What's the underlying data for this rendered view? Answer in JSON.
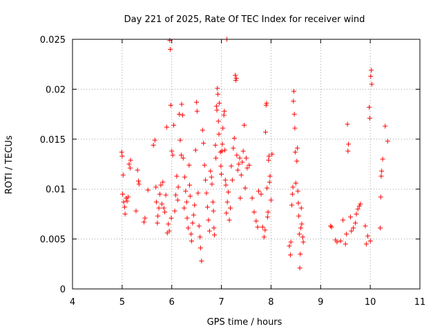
{
  "chart_data": {
    "type": "scatter",
    "title": "Day 221 of 2025, Rate Of TEC Index for receiver wind",
    "xlabel": "GPS time / hours",
    "ylabel": "ROTI / TECUs",
    "xlim": [
      4,
      11
    ],
    "ylim": [
      0,
      0.025
    ],
    "xticks": [
      4,
      5,
      6,
      7,
      8,
      9,
      10,
      11
    ],
    "xtick_labels": [
      "4",
      "5",
      "6",
      "7",
      "8",
      "9",
      "10",
      "11"
    ],
    "yticks": [
      0,
      0.005,
      0.01,
      0.015,
      0.02,
      0.025
    ],
    "ytick_labels": [
      "0",
      "0.005",
      "0.01",
      "0.015",
      "0.02",
      "0.025"
    ],
    "grid": true,
    "marker": "+",
    "color": "#ff0000",
    "series": [
      {
        "points": [
          [
            4.99,
            0.0137
          ],
          [
            5.0,
            0.0133
          ],
          [
            5.02,
            0.0114
          ],
          [
            5.01,
            0.0095
          ],
          [
            5.03,
            0.0087
          ],
          [
            5.05,
            0.0082
          ],
          [
            5.06,
            0.0075
          ],
          [
            5.08,
            0.0091
          ],
          [
            5.1,
            0.0088
          ],
          [
            5.12,
            0.0092
          ],
          [
            5.14,
            0.0125
          ],
          [
            5.16,
            0.0121
          ],
          [
            5.17,
            0.0129
          ],
          [
            5.28,
            0.0078
          ],
          [
            5.31,
            0.0119
          ],
          [
            5.33,
            0.0108
          ],
          [
            5.34,
            0.0105
          ],
          [
            5.44,
            0.0067
          ],
          [
            5.46,
            0.0071
          ],
          [
            5.52,
            0.0099
          ],
          [
            5.63,
            0.0144
          ],
          [
            5.66,
            0.0149
          ],
          [
            5.68,
            0.0102
          ],
          [
            5.69,
            0.0087
          ],
          [
            5.71,
            0.0066
          ],
          [
            5.72,
            0.0073
          ],
          [
            5.74,
            0.0081
          ],
          [
            5.76,
            0.0095
          ],
          [
            5.78,
            0.0104
          ],
          [
            5.8,
            0.0085
          ],
          [
            5.82,
            0.0107
          ],
          [
            5.84,
            0.0081
          ],
          [
            5.86,
            0.0077
          ],
          [
            5.88,
            0.0094
          ],
          [
            5.9,
            0.0162
          ],
          [
            5.91,
            0.0056
          ],
          [
            5.93,
            0.0065
          ],
          [
            5.95,
            0.0058
          ],
          [
            5.96,
            0.0249
          ],
          [
            5.97,
            0.024
          ],
          [
            5.98,
            0.0184
          ],
          [
            5.99,
            0.0071
          ],
          [
            6.0,
            0.0138
          ],
          [
            6.02,
            0.0134
          ],
          [
            6.04,
            0.0164
          ],
          [
            6.06,
            0.0078
          ],
          [
            6.08,
            0.0094
          ],
          [
            6.1,
            0.0113
          ],
          [
            6.12,
            0.0089
          ],
          [
            6.13,
            0.0102
          ],
          [
            6.15,
            0.0175
          ],
          [
            6.17,
            0.0149
          ],
          [
            6.19,
            0.0134
          ],
          [
            6.2,
            0.0185
          ],
          [
            6.22,
            0.0174
          ],
          [
            6.23,
            0.0131
          ],
          [
            6.25,
            0.0081
          ],
          [
            6.26,
            0.0112
          ],
          [
            6.28,
            0.0098
          ],
          [
            6.3,
            0.0087
          ],
          [
            6.31,
            0.0071
          ],
          [
            6.33,
            0.0061
          ],
          [
            6.35,
            0.0124
          ],
          [
            6.36,
            0.0104
          ],
          [
            6.37,
            0.0093
          ],
          [
            6.39,
            0.0055
          ],
          [
            6.4,
            0.0048
          ],
          [
            6.42,
            0.0066
          ],
          [
            6.44,
            0.0074
          ],
          [
            6.46,
            0.0084
          ],
          [
            6.48,
            0.0139
          ],
          [
            6.5,
            0.0187
          ],
          [
            6.51,
            0.0178
          ],
          [
            6.53,
            0.0096
          ],
          [
            6.55,
            0.0063
          ],
          [
            6.57,
            0.0052
          ],
          [
            6.58,
            0.0041
          ],
          [
            6.6,
            0.0028
          ],
          [
            6.62,
            0.0159
          ],
          [
            6.64,
            0.0146
          ],
          [
            6.66,
            0.0124
          ],
          [
            6.68,
            0.0109
          ],
          [
            6.7,
            0.0096
          ],
          [
            6.72,
            0.0082
          ],
          [
            6.74,
            0.0069
          ],
          [
            6.76,
            0.0058
          ],
          [
            6.78,
            0.0118
          ],
          [
            6.8,
            0.0112
          ],
          [
            6.81,
            0.0105
          ],
          [
            6.83,
            0.0087
          ],
          [
            6.84,
            0.0078
          ],
          [
            6.85,
            0.0061
          ],
          [
            6.86,
            0.0054
          ],
          [
            6.88,
            0.0144
          ],
          [
            6.89,
            0.0131
          ],
          [
            6.9,
            0.0183
          ],
          [
            6.91,
            0.0179
          ],
          [
            6.92,
            0.0201
          ],
          [
            6.93,
            0.0195
          ],
          [
            6.94,
            0.0168
          ],
          [
            6.95,
            0.0155
          ],
          [
            6.96,
            0.0186
          ],
          [
            6.98,
            0.0137
          ],
          [
            6.99,
            0.0123
          ],
          [
            7.0,
            0.0115
          ],
          [
            7.01,
            0.0138
          ],
          [
            7.02,
            0.0145
          ],
          [
            7.03,
            0.0161
          ],
          [
            7.05,
            0.0174
          ],
          [
            7.06,
            0.0178
          ],
          [
            7.07,
            0.0139
          ],
          [
            7.08,
            0.0109
          ],
          [
            7.09,
            0.0104
          ],
          [
            7.1,
            0.0076
          ],
          [
            7.11,
            0.025
          ],
          [
            7.12,
            0.0087
          ],
          [
            7.14,
            0.0097
          ],
          [
            7.16,
            0.0069
          ],
          [
            7.18,
            0.0081
          ],
          [
            7.2,
            0.0123
          ],
          [
            7.22,
            0.0109
          ],
          [
            7.24,
            0.0141
          ],
          [
            7.26,
            0.0151
          ],
          [
            7.28,
            0.0214
          ],
          [
            7.29,
            0.0209
          ],
          [
            7.3,
            0.0211
          ],
          [
            7.31,
            0.0134
          ],
          [
            7.33,
            0.0119
          ],
          [
            7.35,
            0.0125
          ],
          [
            7.37,
            0.0131
          ],
          [
            7.38,
            0.0091
          ],
          [
            7.4,
            0.0114
          ],
          [
            7.42,
            0.0127
          ],
          [
            7.44,
            0.0138
          ],
          [
            7.46,
            0.0164
          ],
          [
            7.48,
            0.0101
          ],
          [
            7.5,
            0.0131
          ],
          [
            7.52,
            0.0121
          ],
          [
            7.56,
            0.0124
          ],
          [
            7.62,
            0.0091
          ],
          [
            7.66,
            0.0077
          ],
          [
            7.7,
            0.0068
          ],
          [
            7.73,
            0.0062
          ],
          [
            7.75,
            0.0098
          ],
          [
            7.8,
            0.0095
          ],
          [
            7.83,
            0.0062
          ],
          [
            7.86,
            0.0052
          ],
          [
            7.88,
            0.0059
          ],
          [
            7.89,
            0.0157
          ],
          [
            7.9,
            0.0184
          ],
          [
            7.91,
            0.0186
          ],
          [
            7.92,
            0.0101
          ],
          [
            7.93,
            0.0072
          ],
          [
            7.94,
            0.0077
          ],
          [
            7.95,
            0.0129
          ],
          [
            7.96,
            0.0133
          ],
          [
            7.97,
            0.0107
          ],
          [
            7.98,
            0.0113
          ],
          [
            8.0,
            0.0089
          ],
          [
            8.02,
            0.0135
          ],
          [
            8.37,
            0.0043
          ],
          [
            8.39,
            0.0034
          ],
          [
            8.4,
            0.0047
          ],
          [
            8.42,
            0.0084
          ],
          [
            8.43,
            0.0095
          ],
          [
            8.44,
            0.0102
          ],
          [
            8.45,
            0.0188
          ],
          [
            8.46,
            0.0198
          ],
          [
            8.47,
            0.0175
          ],
          [
            8.48,
            0.0161
          ],
          [
            8.49,
            0.0137
          ],
          [
            8.5,
            0.0106
          ],
          [
            8.52,
            0.0128
          ],
          [
            8.53,
            0.0141
          ],
          [
            8.54,
            0.0098
          ],
          [
            8.55,
            0.0086
          ],
          [
            8.56,
            0.0073
          ],
          [
            8.57,
            0.0055
          ],
          [
            8.58,
            0.0021
          ],
          [
            8.59,
            0.0035
          ],
          [
            8.6,
            0.0061
          ],
          [
            8.61,
            0.0081
          ],
          [
            8.62,
            0.0065
          ],
          [
            8.64,
            0.0052
          ],
          [
            8.65,
            0.0047
          ],
          [
            9.2,
            0.0063
          ],
          [
            9.22,
            0.0062
          ],
          [
            9.3,
            0.0049
          ],
          [
            9.33,
            0.0047
          ],
          [
            9.4,
            0.0048
          ],
          [
            9.45,
            0.0069
          ],
          [
            9.5,
            0.0045
          ],
          [
            9.52,
            0.0055
          ],
          [
            9.54,
            0.0165
          ],
          [
            9.55,
            0.0138
          ],
          [
            9.56,
            0.0145
          ],
          [
            9.6,
            0.0072
          ],
          [
            9.62,
            0.0058
          ],
          [
            9.66,
            0.0061
          ],
          [
            9.7,
            0.0066
          ],
          [
            9.72,
            0.0075
          ],
          [
            9.75,
            0.008
          ],
          [
            9.78,
            0.0083
          ],
          [
            9.8,
            0.0085
          ],
          [
            9.9,
            0.0063
          ],
          [
            9.92,
            0.0045
          ],
          [
            9.95,
            0.0053
          ],
          [
            9.98,
            0.0182
          ],
          [
            9.99,
            0.0171
          ],
          [
            10.0,
            0.0048
          ],
          [
            10.01,
            0.0213
          ],
          [
            10.02,
            0.0219
          ],
          [
            10.03,
            0.0205
          ],
          [
            10.2,
            0.0061
          ],
          [
            10.21,
            0.0092
          ],
          [
            10.22,
            0.0113
          ],
          [
            10.23,
            0.0118
          ],
          [
            10.25,
            0.013
          ],
          [
            10.3,
            0.0163
          ],
          [
            10.35,
            0.0148
          ]
        ]
      }
    ]
  }
}
